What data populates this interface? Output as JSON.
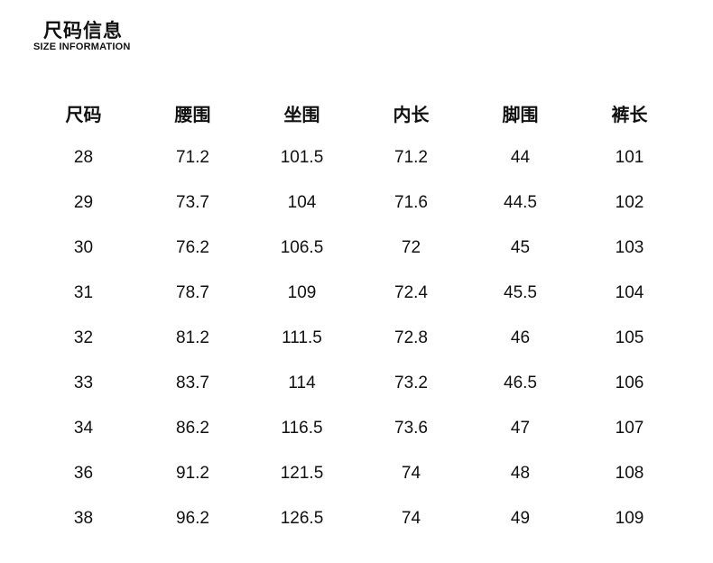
{
  "header": {
    "title": "尺码信息",
    "subtitle": "SIZE INFORMATION"
  },
  "table": {
    "columns": [
      "尺码",
      "腰围",
      "坐围",
      "内长",
      "脚围",
      "裤长"
    ],
    "rows": [
      [
        "28",
        "71.2",
        "101.5",
        "71.2",
        "44",
        "101"
      ],
      [
        "29",
        "73.7",
        "104",
        "71.6",
        "44.5",
        "102"
      ],
      [
        "30",
        "76.2",
        "106.5",
        "72",
        "45",
        "103"
      ],
      [
        "31",
        "78.7",
        "109",
        "72.4",
        "45.5",
        "104"
      ],
      [
        "32",
        "81.2",
        "111.5",
        "72.8",
        "46",
        "105"
      ],
      [
        "33",
        "83.7",
        "114",
        "73.2",
        "46.5",
        "106"
      ],
      [
        "34",
        "86.2",
        "116.5",
        "73.6",
        "47",
        "107"
      ],
      [
        "36",
        "91.2",
        "121.5",
        "74",
        "48",
        "108"
      ],
      [
        "38",
        "96.2",
        "126.5",
        "74",
        "49",
        "109"
      ]
    ]
  }
}
